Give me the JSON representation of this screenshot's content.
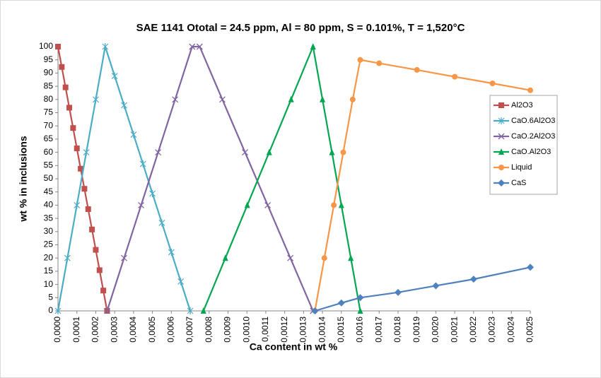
{
  "chart_data": {
    "type": "line",
    "title": "SAE 1141 Ototal = 24.5 ppm, Al = 80 ppm, S = 0.101%, T = 1,520°C",
    "x_label": "Ca content in wt %",
    "y_label": "wt % in inclusions",
    "xlim": [
      0,
      0.0025
    ],
    "ylim": [
      0,
      100
    ],
    "xticks": [
      {
        "value": 0,
        "label": "0,0000"
      },
      {
        "value": 0.0001,
        "label": "0,0001"
      },
      {
        "value": 0.0002,
        "label": "0,0002"
      },
      {
        "value": 0.0003,
        "label": "0,0003"
      },
      {
        "value": 0.0004,
        "label": "0,0004"
      },
      {
        "value": 0.0005,
        "label": "0,0005"
      },
      {
        "value": 0.0006,
        "label": "0,0006"
      },
      {
        "value": 0.0007,
        "label": "0,0007"
      },
      {
        "value": 0.0008,
        "label": "0,0008"
      },
      {
        "value": 0.0009,
        "label": "0,0009"
      },
      {
        "value": 0.001,
        "label": "0,0010"
      },
      {
        "value": 0.0011,
        "label": "0,0011"
      },
      {
        "value": 0.0012,
        "label": "0,0012"
      },
      {
        "value": 0.0013,
        "label": "0,0013"
      },
      {
        "value": 0.0014,
        "label": "0,0014"
      },
      {
        "value": 0.0015,
        "label": "0,0015"
      },
      {
        "value": 0.0016,
        "label": "0,0016"
      },
      {
        "value": 0.0017,
        "label": "0,0017"
      },
      {
        "value": 0.0018,
        "label": "0,0018"
      },
      {
        "value": 0.0019,
        "label": "0,0019"
      },
      {
        "value": 0.002,
        "label": "0,0020"
      },
      {
        "value": 0.0021,
        "label": "0,0021"
      },
      {
        "value": 0.0022,
        "label": "0,0022"
      },
      {
        "value": 0.0023,
        "label": "0,0023"
      },
      {
        "value": 0.0024,
        "label": "0,0024"
      },
      {
        "value": 0.0025,
        "label": "0,0025"
      }
    ],
    "yticks": [
      0,
      5,
      10,
      15,
      20,
      25,
      30,
      35,
      40,
      45,
      50,
      55,
      60,
      65,
      70,
      75,
      80,
      85,
      90,
      95,
      100
    ],
    "grid": false,
    "legend": "right",
    "series": [
      {
        "name": "Al2O3",
        "color": "#c0504d",
        "marker": "square",
        "x": [
          0,
          2e-05,
          4e-05,
          6e-05,
          8e-05,
          0.0001,
          0.00012,
          0.00014,
          0.00016,
          0.00018,
          0.0002,
          0.00022,
          0.00024,
          0.00026
        ],
        "values": [
          100,
          92.3,
          84.6,
          76.9,
          69.2,
          61.5,
          53.8,
          46.2,
          38.5,
          30.8,
          23.1,
          15.4,
          7.7,
          0
        ]
      },
      {
        "name": "CaO.6Al2O3",
        "color": "#4bacc6",
        "marker": "star",
        "x": [
          0,
          5e-05,
          0.0001,
          0.00015,
          0.0002,
          0.00025,
          0.0003,
          0.00035,
          0.0004,
          0.00045,
          0.0005,
          0.00055,
          0.0006,
          0.00065,
          0.0007
        ],
        "values": [
          0,
          20,
          40,
          60,
          80,
          100,
          88.9,
          77.8,
          66.7,
          55.6,
          44.4,
          33.3,
          22.2,
          11.1,
          0
        ]
      },
      {
        "name": "CaO.2Al2O3",
        "color": "#8064a2",
        "marker": "cross",
        "x": [
          0.00026,
          0.00035,
          0.00044,
          0.00053,
          0.00062,
          0.00071,
          0.00075,
          0.00087,
          0.00099,
          0.00111,
          0.00123,
          0.00135
        ],
        "values": [
          0,
          20,
          40,
          60,
          80,
          100,
          100,
          80,
          60,
          40,
          20,
          0
        ]
      },
      {
        "name": "CaO.Al2O3",
        "color": "#00a650",
        "marker": "triangle",
        "x": [
          0.00077,
          0.000886,
          0.001002,
          0.001118,
          0.001234,
          0.00135,
          0.0014,
          0.00145,
          0.0015,
          0.00155,
          0.0016
        ],
        "values": [
          0,
          20,
          40,
          60,
          80,
          100,
          80,
          60,
          40,
          20,
          0
        ]
      },
      {
        "name": "Liquid",
        "color": "#f79646",
        "marker": "circle",
        "x": [
          0.00136,
          0.00141,
          0.00146,
          0.00151,
          0.00156,
          0.0016,
          0.0017,
          0.0019,
          0.0021,
          0.0023,
          0.0025
        ],
        "values": [
          0,
          20,
          40,
          60,
          80,
          95,
          93.7,
          91.2,
          88.6,
          86.1,
          83.5
        ]
      },
      {
        "name": "CaS",
        "color": "#4f81bd",
        "marker": "diamond",
        "x": [
          0.00136,
          0.0015,
          0.0016,
          0.0018,
          0.002,
          0.0022,
          0.0025
        ],
        "values": [
          0,
          3,
          5,
          7,
          9.5,
          12,
          16.5
        ]
      }
    ]
  }
}
